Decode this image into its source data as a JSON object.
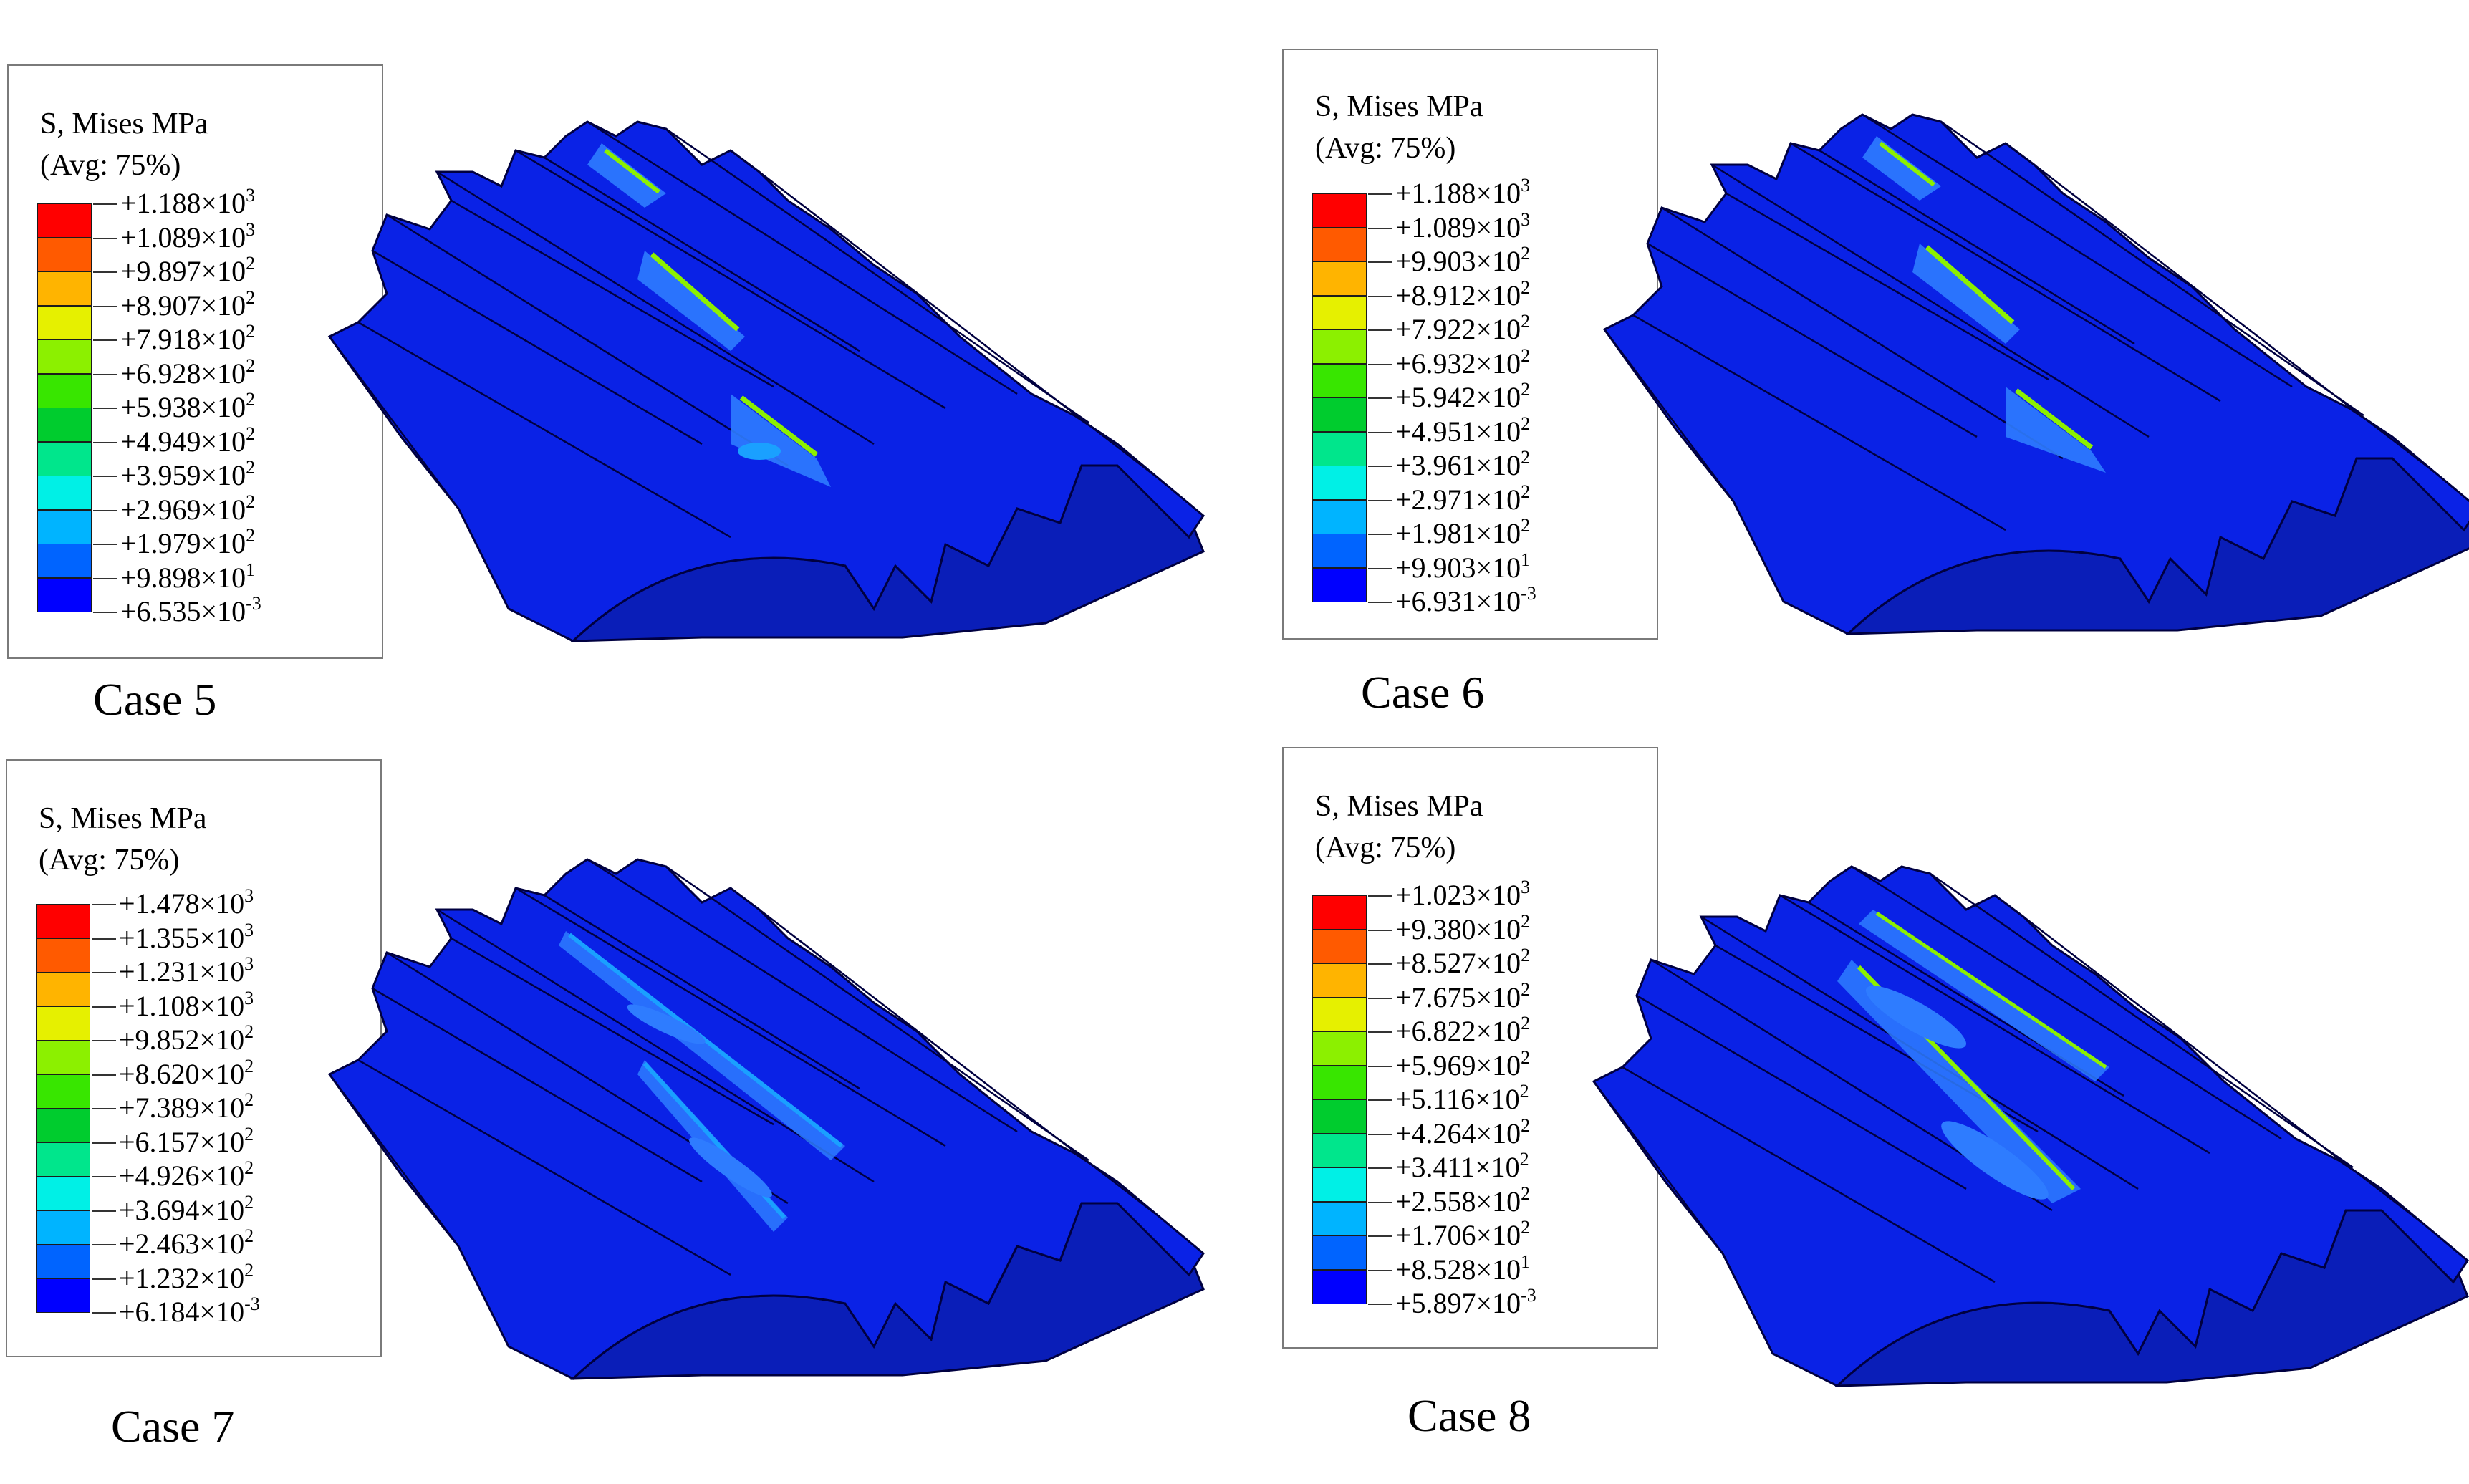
{
  "legend_common": {
    "title_line1": "S, Mises  MPa",
    "title_line2": "(Avg: 75%)"
  },
  "legend_colors": [
    "#ff0000",
    "#ff5a00",
    "#ffb400",
    "#e6f000",
    "#8cf000",
    "#38e600",
    "#00cc2e",
    "#00e68c",
    "#00f0e6",
    "#00b4ff",
    "#0064ff",
    "#0000ff"
  ],
  "gear_colors": {
    "body": "#0a22e6",
    "face": "#0a1eb8",
    "edge": "#000040",
    "stress_light": "#2e7cff",
    "stress_mid": "#1aa0ff",
    "stress_peak": "#8cf000"
  },
  "panels": [
    {
      "id": "case5",
      "case_label": "Case 5",
      "values": [
        {
          "m": "+1.188",
          "e": "3"
        },
        {
          "m": "+1.089",
          "e": "3"
        },
        {
          "m": "+9.897",
          "e": "2"
        },
        {
          "m": "+8.907",
          "e": "2"
        },
        {
          "m": "+7.918",
          "e": "2"
        },
        {
          "m": "+6.928",
          "e": "2"
        },
        {
          "m": "+5.938",
          "e": "2"
        },
        {
          "m": "+4.949",
          "e": "2"
        },
        {
          "m": "+3.959",
          "e": "2"
        },
        {
          "m": "+2.969",
          "e": "2"
        },
        {
          "m": "+1.979",
          "e": "2"
        },
        {
          "m": "+9.898",
          "e": "1"
        },
        {
          "m": "+6.535",
          "e": "-3"
        }
      ]
    },
    {
      "id": "case6",
      "case_label": "Case 6",
      "values": [
        {
          "m": "+1.188",
          "e": "3"
        },
        {
          "m": "+1.089",
          "e": "3"
        },
        {
          "m": "+9.903",
          "e": "2"
        },
        {
          "m": "+8.912",
          "e": "2"
        },
        {
          "m": "+7.922",
          "e": "2"
        },
        {
          "m": "+6.932",
          "e": "2"
        },
        {
          "m": "+5.942",
          "e": "2"
        },
        {
          "m": "+4.951",
          "e": "2"
        },
        {
          "m": "+3.961",
          "e": "2"
        },
        {
          "m": "+2.971",
          "e": "2"
        },
        {
          "m": "+1.981",
          "e": "2"
        },
        {
          "m": "+9.903",
          "e": "1"
        },
        {
          "m": "+6.931",
          "e": "-3"
        }
      ]
    },
    {
      "id": "case7",
      "case_label": "Case 7",
      "values": [
        {
          "m": "+1.478",
          "e": "3"
        },
        {
          "m": "+1.355",
          "e": "3"
        },
        {
          "m": "+1.231",
          "e": "3"
        },
        {
          "m": "+1.108",
          "e": "3"
        },
        {
          "m": "+9.852",
          "e": "2"
        },
        {
          "m": "+8.620",
          "e": "2"
        },
        {
          "m": "+7.389",
          "e": "2"
        },
        {
          "m": "+6.157",
          "e": "2"
        },
        {
          "m": "+4.926",
          "e": "2"
        },
        {
          "m": "+3.694",
          "e": "2"
        },
        {
          "m": "+2.463",
          "e": "2"
        },
        {
          "m": "+1.232",
          "e": "2"
        },
        {
          "m": "+6.184",
          "e": "-3"
        }
      ]
    },
    {
      "id": "case8",
      "case_label": "Case 8",
      "values": [
        {
          "m": "+1.023",
          "e": "3"
        },
        {
          "m": "+9.380",
          "e": "2"
        },
        {
          "m": "+8.527",
          "e": "2"
        },
        {
          "m": "+7.675",
          "e": "2"
        },
        {
          "m": "+6.822",
          "e": "2"
        },
        {
          "m": "+5.969",
          "e": "2"
        },
        {
          "m": "+5.116",
          "e": "2"
        },
        {
          "m": "+4.264",
          "e": "2"
        },
        {
          "m": "+3.411",
          "e": "2"
        },
        {
          "m": "+2.558",
          "e": "2"
        },
        {
          "m": "+1.706",
          "e": "2"
        },
        {
          "m": "+8.528",
          "e": "1"
        },
        {
          "m": "+5.897",
          "e": "-3"
        }
      ]
    }
  ]
}
